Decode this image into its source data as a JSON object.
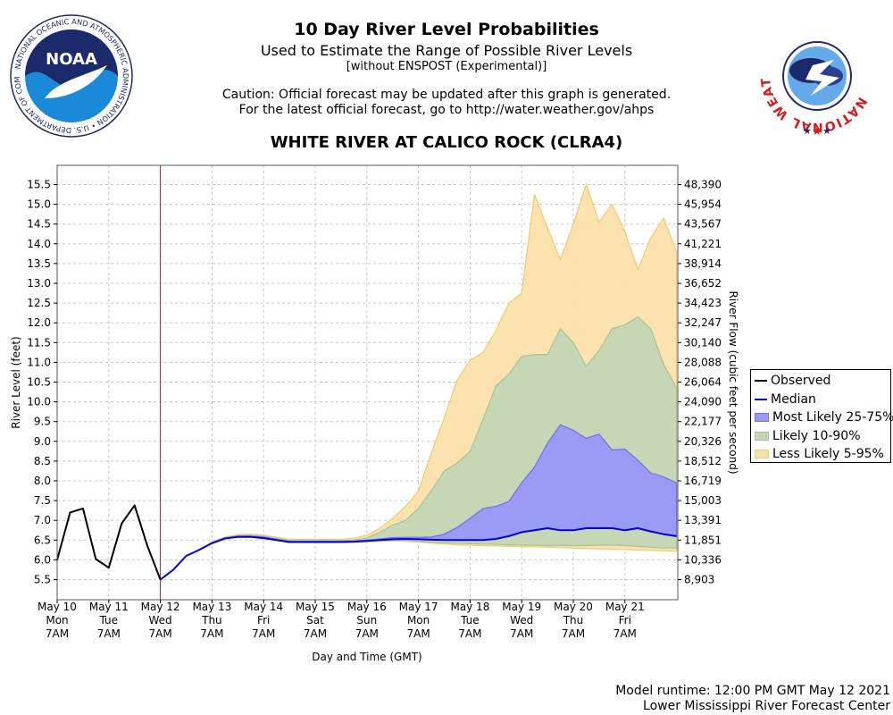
{
  "header": {
    "title": "10 Day River Level Probabilities",
    "subtitle": "Used to Estimate the Range of Possible River Levels",
    "note": "[without ENSPOST (Experimental)]",
    "caution_line1": "Caution: Official forecast may be updated after this graph is generated.",
    "caution_line2": "For the latest official forecast, go to http://water.weather.gov/ahps",
    "station": "WHITE RIVER AT CALICO ROCK (CLRA4)"
  },
  "logos": {
    "noaa": {
      "center_text": "NOAA",
      "ring_text": "NATIONAL OCEANIC AND ATMOSPHERIC ADMINISTRATION • U.S. DEPARTMENT OF COMMERCE"
    },
    "nws": {
      "ring_text": "NATIONAL WEATHER SERVICE"
    }
  },
  "footer": {
    "runtime": "Model runtime: 12:00 PM GMT May 12 2021",
    "center": "Lower Mississippi River Forecast Center"
  },
  "colors": {
    "observed": "#000000",
    "median": "#0000e0",
    "most_likely": "#9898f8",
    "likely": "#c2d6b4",
    "less_likely": "#fbe0aa",
    "less_likely_edge": "#f5c96e",
    "likely_edge": "#a9c29b",
    "most_likely_edge": "#6f6ff0",
    "forecast_line": "#b22222",
    "grid": "#c8c8c8"
  },
  "chart_data": {
    "type": "line",
    "title": "WHITE RIVER AT CALICO ROCK (CLRA4)",
    "xlabel": "Day and Time (GMT)",
    "ylabel": "River Level (feet)",
    "y2label": "River Flow (cubic feet per second)",
    "ylim": [
      5.0,
      15.95
    ],
    "xlim_days": [
      0,
      12.0
    ],
    "forecast_start_day": 2.0,
    "grid": true,
    "legend_position": "right",
    "x_ticks": [
      {
        "day": 0,
        "date": "May 10",
        "dow": "Mon",
        "time": "7AM"
      },
      {
        "day": 1,
        "date": "May 11",
        "dow": "Tue",
        "time": "7AM"
      },
      {
        "day": 2,
        "date": "May 12",
        "dow": "Wed",
        "time": "7AM"
      },
      {
        "day": 3,
        "date": "May 13",
        "dow": "Thu",
        "time": "7AM"
      },
      {
        "day": 4,
        "date": "May 14",
        "dow": "Fri",
        "time": "7AM"
      },
      {
        "day": 5,
        "date": "May 15",
        "dow": "Sat",
        "time": "7AM"
      },
      {
        "day": 6,
        "date": "May 16",
        "dow": "Sun",
        "time": "7AM"
      },
      {
        "day": 7,
        "date": "May 17",
        "dow": "Mon",
        "time": "7AM"
      },
      {
        "day": 8,
        "date": "May 18",
        "dow": "Tue",
        "time": "7AM"
      },
      {
        "day": 9,
        "date": "May 19",
        "dow": "Wed",
        "time": "7AM"
      },
      {
        "day": 10,
        "date": "May 20",
        "dow": "Thu",
        "time": "7AM"
      },
      {
        "day": 11,
        "date": "May 21",
        "dow": "Fri",
        "time": "7AM"
      }
    ],
    "y_ticks": [
      "5.5",
      "6.0",
      "6.5",
      "7.0",
      "7.5",
      "8.0",
      "8.5",
      "9.0",
      "9.5",
      "10.0",
      "10.5",
      "11.0",
      "11.5",
      "12.0",
      "12.5",
      "13.0",
      "13.5",
      "14.0",
      "14.5",
      "15.0",
      "15.5"
    ],
    "flow_ticks": [
      {
        "stage": 5.5,
        "label": "8,903"
      },
      {
        "stage": 6.0,
        "label": "10,336"
      },
      {
        "stage": 6.5,
        "label": "11,851"
      },
      {
        "stage": 7.0,
        "label": "13,391"
      },
      {
        "stage": 7.5,
        "label": "15,003"
      },
      {
        "stage": 8.0,
        "label": "16,719"
      },
      {
        "stage": 8.5,
        "label": "18,512"
      },
      {
        "stage": 9.0,
        "label": "20,326"
      },
      {
        "stage": 9.5,
        "label": "22,177"
      },
      {
        "stage": 10.0,
        "label": "24,090"
      },
      {
        "stage": 10.5,
        "label": "26,064"
      },
      {
        "stage": 11.0,
        "label": "28,088"
      },
      {
        "stage": 11.5,
        "label": "30,140"
      },
      {
        "stage": 12.0,
        "label": "32,247"
      },
      {
        "stage": 12.5,
        "label": "34,423"
      },
      {
        "stage": 13.0,
        "label": "36,652"
      },
      {
        "stage": 13.5,
        "label": "38,914"
      },
      {
        "stage": 14.0,
        "label": "41,221"
      },
      {
        "stage": 14.5,
        "label": "43,567"
      },
      {
        "stage": 15.0,
        "label": "45,954"
      },
      {
        "stage": 15.5,
        "label": "48,390"
      }
    ],
    "series": [
      {
        "name": "Observed",
        "x": [
          0,
          0.25,
          0.5,
          0.75,
          1.0,
          1.25,
          1.5,
          1.75,
          2.0
        ],
        "values": [
          6.0,
          7.2,
          7.3,
          6.02,
          5.8,
          6.92,
          7.38,
          6.35,
          5.5
        ]
      },
      {
        "name": "Median",
        "x": [
          2.0,
          2.25,
          2.5,
          2.75,
          3.0,
          3.25,
          3.5,
          3.75,
          4.0,
          4.25,
          4.5,
          4.75,
          5.0,
          5.25,
          5.5,
          5.75,
          6.0,
          6.25,
          6.5,
          6.75,
          7.0,
          7.25,
          7.5,
          7.75,
          8.0,
          8.25,
          8.5,
          8.75,
          9.0,
          9.25,
          9.5,
          9.75,
          10.0,
          10.25,
          10.5,
          10.75,
          11.0,
          11.25,
          11.5,
          11.75,
          12.0
        ],
        "values": [
          5.5,
          5.75,
          6.1,
          6.25,
          6.42,
          6.54,
          6.58,
          6.58,
          6.55,
          6.5,
          6.45,
          6.45,
          6.45,
          6.45,
          6.45,
          6.46,
          6.48,
          6.5,
          6.52,
          6.53,
          6.52,
          6.51,
          6.5,
          6.5,
          6.5,
          6.5,
          6.53,
          6.6,
          6.7,
          6.75,
          6.8,
          6.75,
          6.75,
          6.8,
          6.8,
          6.8,
          6.75,
          6.8,
          6.72,
          6.65,
          6.6
        ]
      }
    ],
    "bands": [
      {
        "name": "Less Likely 5-95%",
        "x": [
          2.0,
          2.25,
          2.5,
          2.75,
          3.0,
          3.25,
          3.5,
          3.75,
          4.0,
          4.25,
          4.5,
          4.75,
          5.0,
          5.25,
          5.5,
          5.75,
          6.0,
          6.25,
          6.5,
          6.75,
          7.0,
          7.25,
          7.5,
          7.75,
          8.0,
          8.25,
          8.5,
          8.75,
          9.0,
          9.25,
          9.5,
          9.75,
          10.0,
          10.25,
          10.5,
          10.75,
          11.0,
          11.25,
          11.5,
          11.75,
          12.0
        ],
        "upper": [
          5.5,
          5.75,
          6.1,
          6.27,
          6.46,
          6.58,
          6.64,
          6.65,
          6.63,
          6.57,
          6.52,
          6.52,
          6.52,
          6.52,
          6.52,
          6.55,
          6.62,
          6.8,
          7.05,
          7.35,
          7.75,
          8.7,
          9.6,
          10.55,
          11.05,
          11.25,
          11.8,
          12.5,
          12.75,
          15.25,
          14.4,
          13.6,
          14.5,
          15.5,
          14.55,
          15.0,
          14.3,
          13.35,
          14.15,
          14.65,
          13.8
        ],
        "lower": [
          5.5,
          5.75,
          6.1,
          6.25,
          6.42,
          6.54,
          6.58,
          6.58,
          6.55,
          6.5,
          6.45,
          6.45,
          6.45,
          6.45,
          6.45,
          6.45,
          6.46,
          6.47,
          6.48,
          6.47,
          6.45,
          6.42,
          6.4,
          6.38,
          6.37,
          6.36,
          6.35,
          6.34,
          6.33,
          6.33,
          6.32,
          6.31,
          6.3,
          6.29,
          6.28,
          6.27,
          6.26,
          6.25,
          6.24,
          6.23,
          6.22
        ]
      },
      {
        "name": "Likely 10-90%",
        "x": [
          2.0,
          2.25,
          2.5,
          2.75,
          3.0,
          3.25,
          3.5,
          3.75,
          4.0,
          4.25,
          4.5,
          4.75,
          5.0,
          5.25,
          5.5,
          5.75,
          6.0,
          6.25,
          6.5,
          6.75,
          7.0,
          7.25,
          7.5,
          7.75,
          8.0,
          8.25,
          8.5,
          8.75,
          9.0,
          9.25,
          9.5,
          9.75,
          10.0,
          10.25,
          10.5,
          10.75,
          11.0,
          11.25,
          11.5,
          11.75,
          12.0
        ],
        "upper": [
          5.5,
          5.75,
          6.1,
          6.26,
          6.44,
          6.56,
          6.61,
          6.62,
          6.6,
          6.54,
          6.49,
          6.49,
          6.49,
          6.49,
          6.49,
          6.5,
          6.55,
          6.7,
          6.88,
          7.0,
          7.3,
          7.75,
          8.25,
          8.45,
          8.75,
          9.55,
          10.4,
          10.7,
          11.15,
          11.2,
          11.2,
          11.85,
          11.5,
          10.9,
          11.3,
          11.85,
          11.95,
          12.15,
          11.85,
          10.95,
          10.35
        ],
        "lower": [
          5.5,
          5.75,
          6.1,
          6.25,
          6.42,
          6.54,
          6.58,
          6.58,
          6.55,
          6.5,
          6.45,
          6.45,
          6.45,
          6.45,
          6.45,
          6.45,
          6.47,
          6.48,
          6.49,
          6.49,
          6.47,
          6.45,
          6.43,
          6.42,
          6.41,
          6.4,
          6.39,
          6.38,
          6.37,
          6.37,
          6.36,
          6.36,
          6.36,
          6.36,
          6.37,
          6.37,
          6.36,
          6.34,
          6.32,
          6.3,
          6.3
        ]
      },
      {
        "name": "Most Likely 25-75%",
        "x": [
          2.0,
          2.25,
          2.5,
          2.75,
          3.0,
          3.25,
          3.5,
          3.75,
          4.0,
          4.25,
          4.5,
          4.75,
          5.0,
          5.25,
          5.5,
          5.75,
          6.0,
          6.25,
          6.5,
          6.75,
          7.0,
          7.25,
          7.5,
          7.75,
          8.0,
          8.25,
          8.5,
          8.75,
          9.0,
          9.25,
          9.5,
          9.75,
          10.0,
          10.25,
          10.5,
          10.75,
          11.0,
          11.25,
          11.5,
          11.75,
          12.0
        ],
        "upper": [
          5.5,
          5.75,
          6.1,
          6.25,
          6.43,
          6.55,
          6.6,
          6.6,
          6.58,
          6.52,
          6.47,
          6.47,
          6.47,
          6.47,
          6.47,
          6.48,
          6.5,
          6.53,
          6.56,
          6.57,
          6.57,
          6.58,
          6.65,
          6.82,
          7.05,
          7.3,
          7.35,
          7.48,
          7.95,
          8.35,
          8.95,
          9.42,
          9.28,
          9.08,
          9.18,
          8.78,
          8.8,
          8.52,
          8.2,
          8.1,
          7.95
        ]
      }
    ]
  }
}
